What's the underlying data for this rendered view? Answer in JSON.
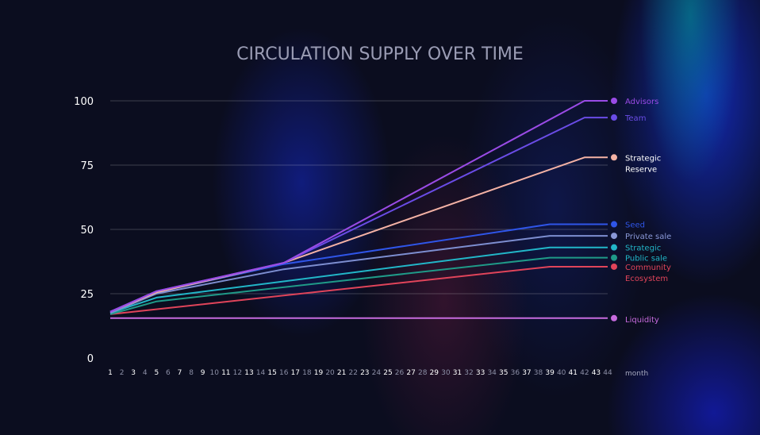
{
  "chart_data": {
    "type": "line",
    "title": "CIRCULATION SUPPLY OVER TIME",
    "xlabel": "month",
    "ylabel": "",
    "ylim": [
      0,
      100
    ],
    "yticks": [
      0,
      25,
      50,
      75,
      100
    ],
    "x": [
      1,
      2,
      3,
      4,
      5,
      6,
      7,
      8,
      9,
      10,
      11,
      12,
      13,
      14,
      15,
      16,
      17,
      18,
      19,
      20,
      21,
      22,
      23,
      24,
      25,
      26,
      27,
      28,
      29,
      30,
      31,
      32,
      33,
      34,
      35,
      36,
      37,
      38,
      39,
      40,
      41,
      42,
      43,
      44
    ],
    "grid": true,
    "legend_position": "right",
    "series": [
      {
        "name": "Advisors",
        "color": "#9a4be6",
        "points": [
          [
            1,
            18
          ],
          [
            5,
            26
          ],
          [
            16,
            37
          ],
          [
            42,
            100
          ],
          [
            44,
            100
          ]
        ]
      },
      {
        "name": "Team",
        "color": "#6a4ce6",
        "points": [
          [
            1,
            18
          ],
          [
            5,
            26
          ],
          [
            16,
            37
          ],
          [
            42,
            93.5
          ],
          [
            44,
            93.5
          ]
        ]
      },
      {
        "name": "Strategic Reserve",
        "color": "#f4b2a5",
        "points": [
          [
            1,
            18
          ],
          [
            5,
            25.5
          ],
          [
            16,
            37
          ],
          [
            42,
            78
          ],
          [
            44,
            78
          ]
        ]
      },
      {
        "name": "Seed",
        "color": "#2f55e8",
        "points": [
          [
            1,
            18
          ],
          [
            5,
            25.5
          ],
          [
            16,
            36.5
          ],
          [
            39,
            52
          ],
          [
            44,
            52
          ]
        ]
      },
      {
        "name": "Private sale",
        "color": "#7d8ed0",
        "points": [
          [
            1,
            17.5
          ],
          [
            5,
            25
          ],
          [
            16,
            34.5
          ],
          [
            39,
            47.5
          ],
          [
            44,
            47.5
          ]
        ]
      },
      {
        "name": "Strategic",
        "color": "#22b6c8",
        "points": [
          [
            1,
            17.5
          ],
          [
            5,
            23.5
          ],
          [
            39,
            43
          ],
          [
            44,
            43
          ]
        ]
      },
      {
        "name": "Public sale",
        "color": "#1f9a88",
        "points": [
          [
            1,
            17
          ],
          [
            5,
            22
          ],
          [
            39,
            39
          ],
          [
            44,
            39
          ]
        ]
      },
      {
        "name": "Community Ecosystem",
        "color": "#e0445a",
        "points": [
          [
            1,
            17
          ],
          [
            39,
            35.5
          ],
          [
            44,
            35.5
          ]
        ]
      },
      {
        "name": "Liquidity",
        "color": "#c76bde",
        "points": [
          [
            1,
            15.5
          ],
          [
            44,
            15.5
          ]
        ]
      }
    ]
  },
  "legend": [
    {
      "lines": [
        "Advisors"
      ],
      "color": "#9a4be6"
    },
    {
      "lines": [
        "Team"
      ],
      "color": "#6a4ce6"
    },
    {
      "lines": [
        "Strategic",
        "Reserve"
      ],
      "color": "#f4b2a5",
      "text_color": "#ffffff"
    },
    {
      "lines": [
        "Seed"
      ],
      "color": "#2f55e8"
    },
    {
      "lines": [
        "Private sale"
      ],
      "color": "#8a98d8"
    },
    {
      "lines": [
        "Strategic"
      ],
      "color": "#22b6c8"
    },
    {
      "lines": [
        "Public sale"
      ],
      "color": "#1f9a88",
      "text_color": "#22b6c8"
    },
    {
      "lines": [
        "Community",
        "Ecosystem"
      ],
      "color": "#e0445a"
    },
    {
      "lines": [
        "Liquidity"
      ],
      "color": "#c76bde"
    }
  ]
}
